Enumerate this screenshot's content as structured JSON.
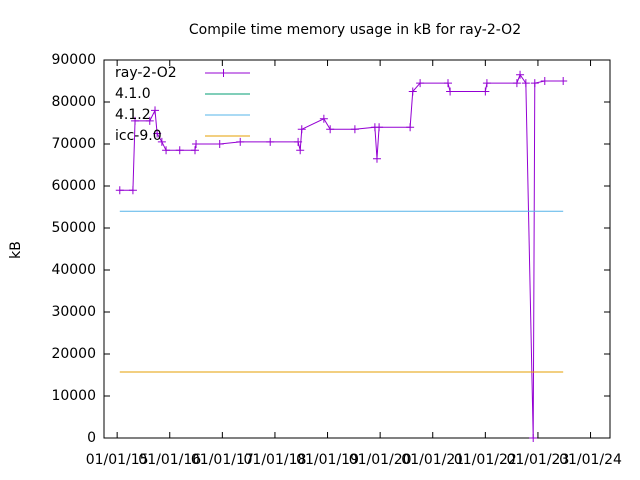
{
  "chart_data": {
    "type": "line",
    "title": "Compile time memory usage in kB for ray-2-O2",
    "y_label": "kB",
    "xlim": [
      2014.75,
      2024.37
    ],
    "xticks": [
      {
        "value": 2015,
        "label": "01/01/15"
      },
      {
        "value": 2016,
        "label": "01/01/16"
      },
      {
        "value": 2017,
        "label": "01/01/17"
      },
      {
        "value": 2018,
        "label": "01/01/18"
      },
      {
        "value": 2019,
        "label": "01/01/19"
      },
      {
        "value": 2020,
        "label": "01/01/20"
      },
      {
        "value": 2021,
        "label": "01/01/21"
      },
      {
        "value": 2022,
        "label": "01/01/22"
      },
      {
        "value": 2023,
        "label": "01/01/23"
      },
      {
        "value": 2024,
        "label": "01/01/24"
      }
    ],
    "ylim": [
      0,
      90000
    ],
    "yticks": [
      0,
      10000,
      20000,
      30000,
      40000,
      50000,
      60000,
      70000,
      80000,
      90000
    ],
    "legend": "top-left",
    "series": [
      {
        "name": "ray-2-O2",
        "color": "#9400d3",
        "markers": true,
        "x": [
          2015.05,
          2015.3,
          2015.34,
          2015.62,
          2015.72,
          2015.76,
          2015.85,
          2015.93,
          2016.19,
          2016.48,
          2016.5,
          2016.95,
          2017.34,
          2017.91,
          2018.44,
          2018.48,
          2018.51,
          2018.93,
          2019.05,
          2019.52,
          2019.9,
          2019.94,
          2019.98,
          2020.57,
          2020.62,
          2020.76,
          2021.29,
          2021.33,
          2022.0,
          2022.03,
          2022.6,
          2022.66,
          2022.77,
          2022.91,
          2022.94,
          2023.13,
          2023.48
        ],
        "values": [
          59000,
          59000,
          75500,
          75500,
          78000,
          72500,
          70500,
          68500,
          68500,
          68500,
          70000,
          70000,
          70500,
          70500,
          70500,
          68500,
          73500,
          76000,
          73500,
          73500,
          74000,
          66500,
          74000,
          74000,
          82500,
          84500,
          84500,
          82500,
          82500,
          84500,
          84500,
          86500,
          84500,
          0,
          84500,
          85000,
          85000
        ]
      },
      {
        "name": "4.1.0",
        "color": "#009e73",
        "x": [],
        "values": []
      },
      {
        "name": "4.1.2",
        "color": "#56b4e9",
        "x": [
          2015.05,
          2023.48
        ],
        "values": [
          54000,
          54000
        ]
      },
      {
        "name": "icc-9.0",
        "color": "#e69f00",
        "x": [
          2015.05,
          2023.48
        ],
        "values": [
          15700,
          15700
        ]
      }
    ]
  }
}
